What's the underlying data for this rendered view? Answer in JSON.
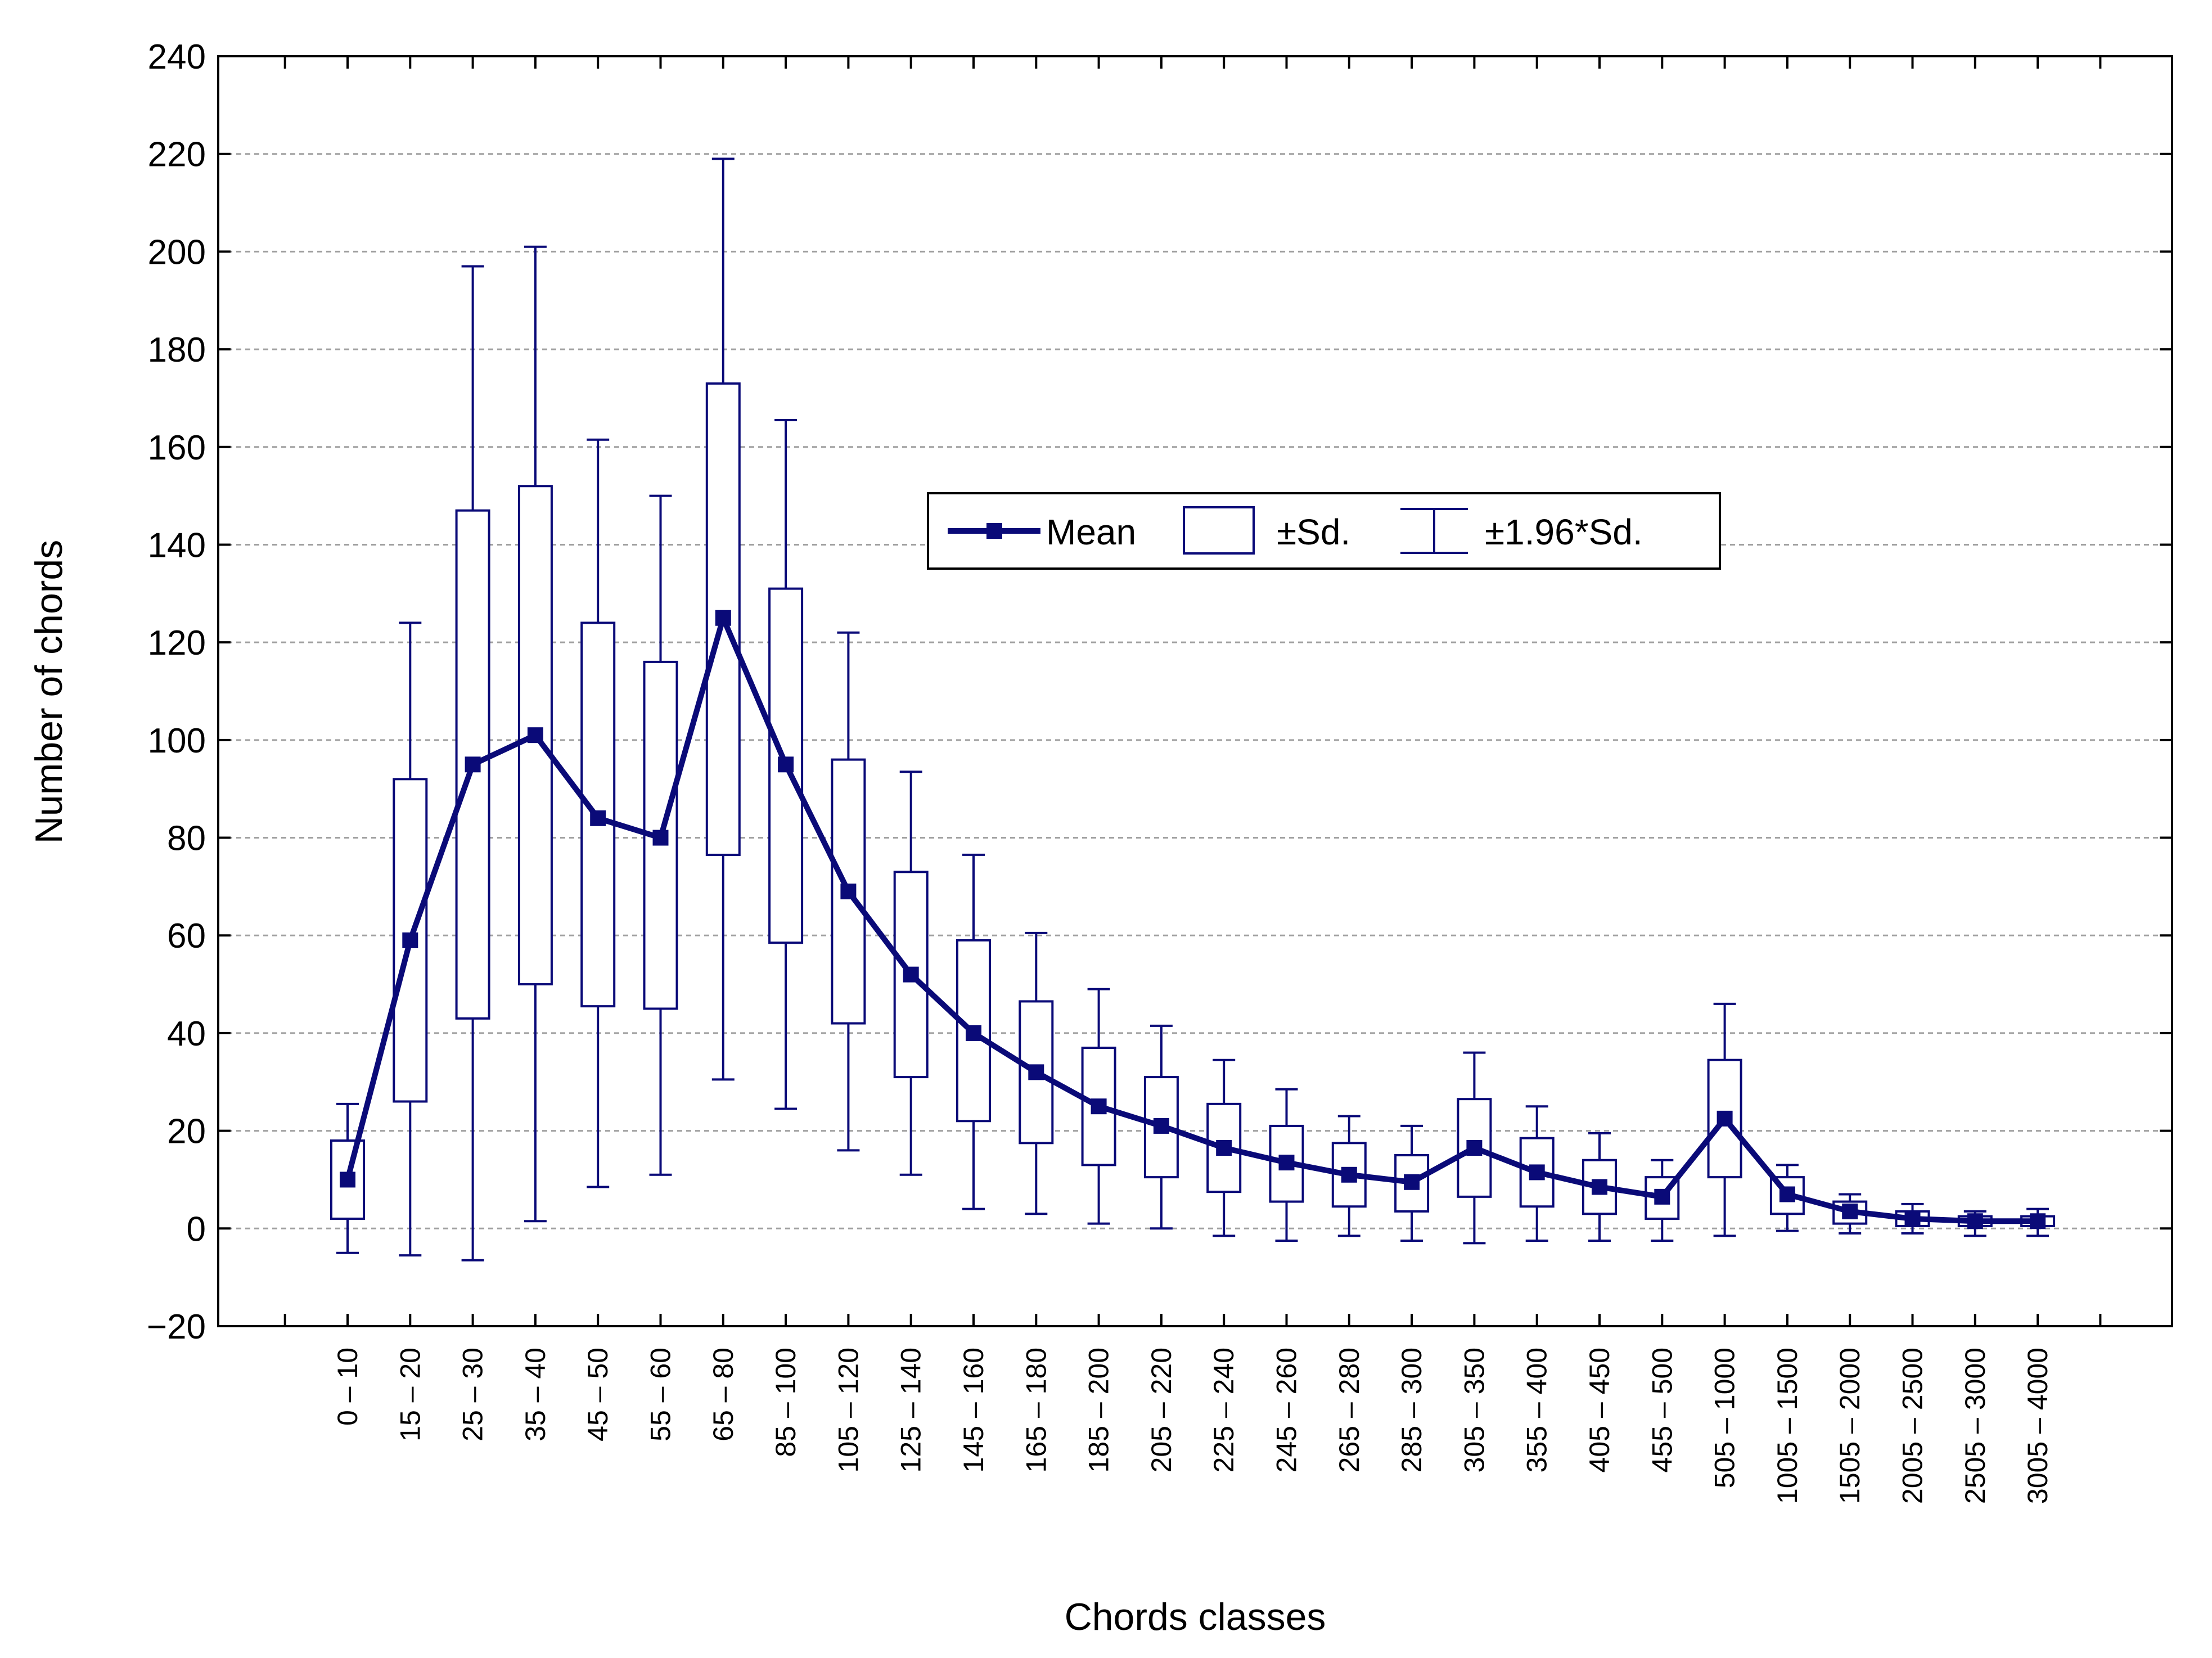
{
  "chart_data": {
    "type": "box",
    "title": "",
    "xlabel": "Chords classes",
    "ylabel": "Number of chords",
    "ylim": [
      -20,
      240
    ],
    "yticks": [
      -20,
      0,
      20,
      40,
      60,
      80,
      100,
      120,
      140,
      160,
      180,
      200,
      220,
      240
    ],
    "ytick_labels": [
      "−20",
      "0",
      "20",
      "40",
      "60",
      "80",
      "100",
      "120",
      "140",
      "160",
      "180",
      "200",
      "220",
      "240"
    ],
    "grid": "horizontal dashed",
    "legend": {
      "position": "upper-center",
      "entries": [
        "Mean",
        "±Sd.",
        "±1.96*Sd."
      ]
    },
    "categories": [
      "0 – 10",
      "15 – 20",
      "25 – 30",
      "35 – 40",
      "45 – 50",
      "55 – 60",
      "65 – 80",
      "85 – 100",
      "105 – 120",
      "125 – 140",
      "145 – 160",
      "165 – 180",
      "185 – 200",
      "205 – 220",
      "225 – 240",
      "245 – 260",
      "265 – 280",
      "285 – 300",
      "305 – 350",
      "355 – 400",
      "405 – 450",
      "455 – 500",
      "505 – 1000",
      "1005 – 1500",
      "1505 – 2000",
      "2005 – 2500",
      "2505 – 3000",
      "3005 – 4000"
    ],
    "mean": [
      10,
      59,
      95,
      101,
      84,
      80,
      125,
      95,
      69,
      52,
      40,
      32,
      25,
      21,
      16.5,
      13.5,
      11,
      9.5,
      16.5,
      11.5,
      8.5,
      6.5,
      22.5,
      7,
      3.5,
      2,
      1.5,
      1.5
    ],
    "sd_low": [
      2,
      26,
      43,
      50,
      45.5,
      45,
      76.5,
      58.5,
      42,
      31,
      22,
      17.5,
      13,
      10.5,
      7.5,
      5.5,
      4.5,
      3.5,
      6.5,
      4.5,
      3,
      2,
      10.5,
      3,
      1,
      0.5,
      0.5,
      0.5
    ],
    "sd_high": [
      18,
      92,
      147,
      152,
      124,
      116,
      173,
      131,
      96,
      73,
      59,
      46.5,
      37,
      31,
      25.5,
      21,
      17.5,
      15,
      26.5,
      18.5,
      14,
      10.5,
      34.5,
      10.5,
      5.5,
      3.5,
      2.5,
      2.5
    ],
    "ci_low": [
      -5,
      -5.5,
      -6.5,
      1.5,
      8.5,
      11,
      30.5,
      24.5,
      16,
      11,
      4,
      3,
      1,
      0,
      -1.5,
      -2.5,
      -1.5,
      -2.5,
      -3,
      -2.5,
      -2.5,
      -2.5,
      -1.5,
      -0.5,
      -1,
      -1,
      -1.5,
      -1.5
    ],
    "ci_high": [
      25.5,
      124,
      197,
      201,
      161.5,
      150,
      219,
      165.5,
      122,
      93.5,
      76.5,
      60.5,
      49,
      41.5,
      34.5,
      28.5,
      23,
      21,
      36,
      25,
      19.5,
      14,
      46,
      13,
      7,
      5,
      3.5,
      4
    ]
  },
  "colors": {
    "series": "#0a0a78",
    "axis": "#000000",
    "grid": "#a0a0a0",
    "background": "#ffffff"
  }
}
